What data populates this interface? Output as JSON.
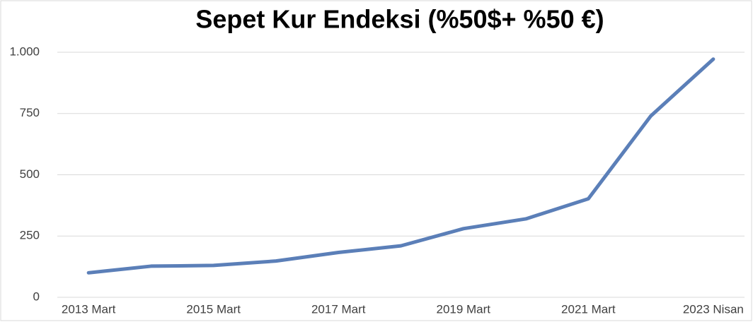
{
  "chart_data": {
    "type": "line",
    "title": "Sepet Kur Endeksi (%50$+ %50 €)",
    "categories": [
      "2013 Mart",
      null,
      "2015 Mart",
      null,
      "2017 Mart",
      null,
      "2019 Mart",
      null,
      "2021 Mart",
      null,
      "2023 Nisan"
    ],
    "series": [
      {
        "name": "Sepet Kur Endeksi",
        "color": "#5b7fb8",
        "values": [
          100,
          127,
          130,
          148,
          183,
          210,
          280,
          320,
          402,
          740,
          972
        ]
      }
    ],
    "ylim": [
      0,
      1000
    ],
    "yticks": [
      0,
      250,
      500,
      750,
      {
        "value": 1000,
        "label": "1.000"
      }
    ],
    "grid": true
  }
}
